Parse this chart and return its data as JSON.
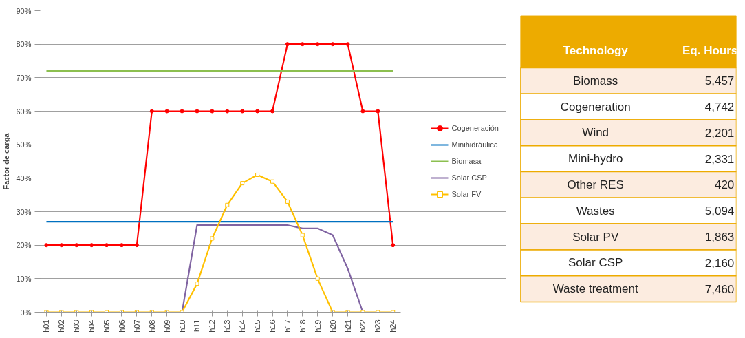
{
  "chart_data": [
    {
      "type": "line",
      "ylabel": "Factor de carga",
      "categories": [
        "h01",
        "h02",
        "h03",
        "h04",
        "h05",
        "h06",
        "h07",
        "h08",
        "h09",
        "h10",
        "h11",
        "h12",
        "h13",
        "h14",
        "h15",
        "h16",
        "h17",
        "h18",
        "h19",
        "h20",
        "h21",
        "h22",
        "h23",
        "h24"
      ],
      "series": [
        {
          "name": "Cogeneración",
          "color": "#ff0000",
          "marker": "circle",
          "values": [
            20,
            20,
            20,
            20,
            20,
            20,
            20,
            60,
            60,
            60,
            60,
            60,
            60,
            60,
            60,
            60,
            80,
            80,
            80,
            80,
            80,
            60,
            60,
            20
          ]
        },
        {
          "name": "Minihidráulica",
          "color": "#0070c0",
          "marker": "none",
          "values": [
            27,
            27,
            27,
            27,
            27,
            27,
            27,
            27,
            27,
            27,
            27,
            27,
            27,
            27,
            27,
            27,
            27,
            27,
            27,
            27,
            27,
            27,
            27,
            27
          ]
        },
        {
          "name": "Biomasa",
          "color": "#8cbf50",
          "marker": "none",
          "values": [
            72,
            72,
            72,
            72,
            72,
            72,
            72,
            72,
            72,
            72,
            72,
            72,
            72,
            72,
            72,
            72,
            72,
            72,
            72,
            72,
            72,
            72,
            72,
            72
          ]
        },
        {
          "name": "Solar CSP",
          "color": "#8064a2",
          "marker": "none",
          "values": [
            null,
            null,
            null,
            null,
            null,
            null,
            null,
            null,
            null,
            0,
            26,
            26,
            26,
            26,
            26,
            26,
            26,
            25,
            25,
            23,
            13,
            0,
            null,
            null
          ]
        },
        {
          "name": "Solar FV",
          "color": "#ffc000",
          "marker": "square",
          "values": [
            0,
            0,
            0,
            0,
            0,
            0,
            0,
            0,
            0,
            0,
            8.5,
            22,
            32,
            38.5,
            41,
            39,
            33,
            23,
            10,
            0,
            0,
            0,
            0,
            0
          ]
        }
      ],
      "ylim": [
        0,
        90
      ],
      "yticks": [
        {
          "value": 0,
          "label": "0%"
        },
        {
          "value": 10,
          "label": "10%"
        },
        {
          "value": 20,
          "label": "20%"
        },
        {
          "value": 30,
          "label": "30%"
        },
        {
          "value": 40,
          "label": "40%"
        },
        {
          "value": 50,
          "label": "50%"
        },
        {
          "value": 60,
          "label": "60%"
        },
        {
          "value": 70,
          "label": "70%"
        },
        {
          "value": 80,
          "label": "80%"
        },
        {
          "value": 90,
          "label": "90%"
        }
      ],
      "grid": "y",
      "legend": "right",
      "line_style": "solid"
    },
    {
      "type": "other",
      "annotations": [
        "Technology",
        "Eq. Hours",
        "Biomass",
        "5,457",
        "Cogeneration",
        "4,742",
        "Wind",
        "2,201",
        "Mini-hydro",
        "2,331",
        "Other RES",
        "420",
        "Wastes",
        "5,094",
        "Solar PV",
        "1,863",
        "Solar CSP",
        "2,160",
        "Waste treatment",
        "7,460"
      ],
      "color": "#edab00"
    }
  ]
}
